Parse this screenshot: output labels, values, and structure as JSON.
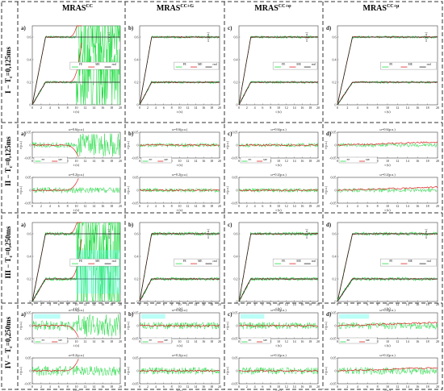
{
  "columns": [
    {
      "base": "MRAS",
      "sup": "CC"
    },
    {
      "base": "MRAS",
      "sup": "CC+G"
    },
    {
      "base": "MRAS",
      "sup": "CC+φ"
    },
    {
      "base": "MRAS",
      "sup": "CC+μ"
    }
  ],
  "rows": [
    {
      "label": "I − T",
      "sub": "c",
      "value": "=0,125ms",
      "type": "speed"
    },
    {
      "label": "II − T",
      "sub": "c",
      "value": "=0,125ms",
      "type": "error"
    },
    {
      "label": "III − T",
      "sub": "c",
      "value": "=0,250ms",
      "type": "speed"
    },
    {
      "label": "IV − T",
      "sub": "c",
      "value": "=0,250ms",
      "type": "error"
    }
  ],
  "panel_letters": [
    "a)",
    "b)",
    "c)",
    "d)"
  ],
  "xlabel": "t (s)",
  "speed_ylabel": "ω (p.u.)",
  "error_ylabel": "e (p.u.)",
  "error_top_title": "ω=0.6(p.u.)",
  "error_bottom_title": "ω=0.2(p.u.)",
  "legend_speed": [
    "FE",
    "ME",
    "real"
  ],
  "legend_error": [
    "FE",
    "ME"
  ],
  "colors": {
    "fe": "#22dd44",
    "me": "#dd2222",
    "real": "#222222",
    "frame": "#444444",
    "cyan": "#66ffee"
  },
  "chart_data": {
    "type": "line",
    "x_ticks": [
      0,
      2,
      4,
      6,
      8,
      10,
      12,
      14,
      16,
      18,
      20
    ],
    "xlim": [
      0,
      20
    ],
    "speed_chart": {
      "ylim": [
        0,
        0.7
      ],
      "y_ticks": [
        0,
        0.2,
        0.4,
        0.6
      ],
      "series": [
        {
          "name": "real",
          "x": [
            0,
            3,
            20
          ],
          "y": [
            0,
            0.6,
            0.6
          ]
        },
        {
          "name": "real",
          "x": [
            0,
            3,
            20
          ],
          "y": [
            0,
            0.2,
            0.2
          ]
        }
      ],
      "unstable_after_s_columns": [
        10,
        null,
        null,
        null
      ]
    },
    "error_chart": {
      "ylim": [
        -0.05,
        0.05
      ],
      "y_ticks": [
        -0.05,
        0,
        0.05
      ],
      "top_reference_speed": 0.6,
      "bottom_reference_speed": 0.2
    }
  }
}
